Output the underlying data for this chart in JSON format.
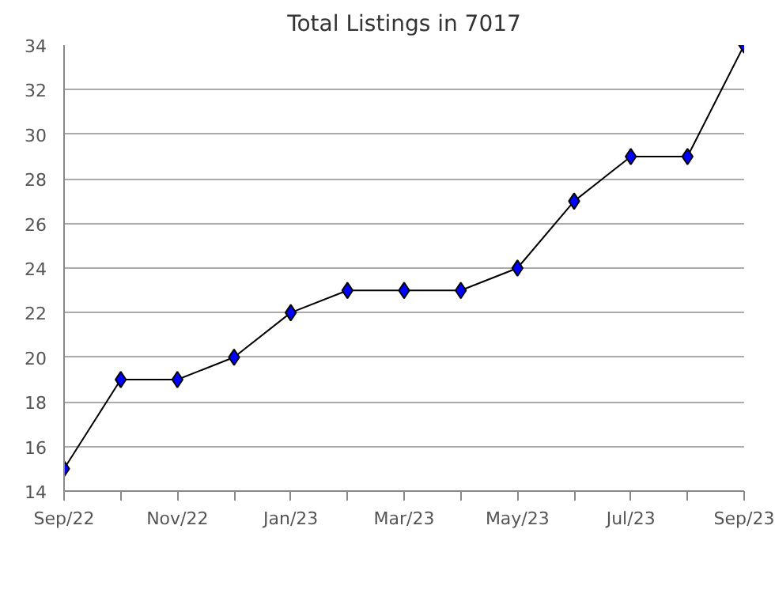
{
  "chart_data": {
    "type": "line",
    "title": "Total Listings in 7017",
    "categories": [
      "Sep/22",
      null,
      "Nov/22",
      null,
      "Jan/23",
      null,
      "Mar/23",
      null,
      "May/23",
      null,
      "Jul/23",
      null,
      "Sep/23"
    ],
    "series": [
      {
        "color": "#0000ff",
        "values": [
          15,
          19,
          19,
          20,
          22,
          23,
          23,
          23,
          24,
          27,
          29,
          29,
          34
        ]
      }
    ],
    "ylim": [
      14,
      34
    ],
    "yticks": [
      14,
      16,
      18,
      20,
      22,
      24,
      26,
      28,
      30,
      32,
      34
    ],
    "grid": "y",
    "marker": "diamond",
    "line_style": "solid"
  }
}
